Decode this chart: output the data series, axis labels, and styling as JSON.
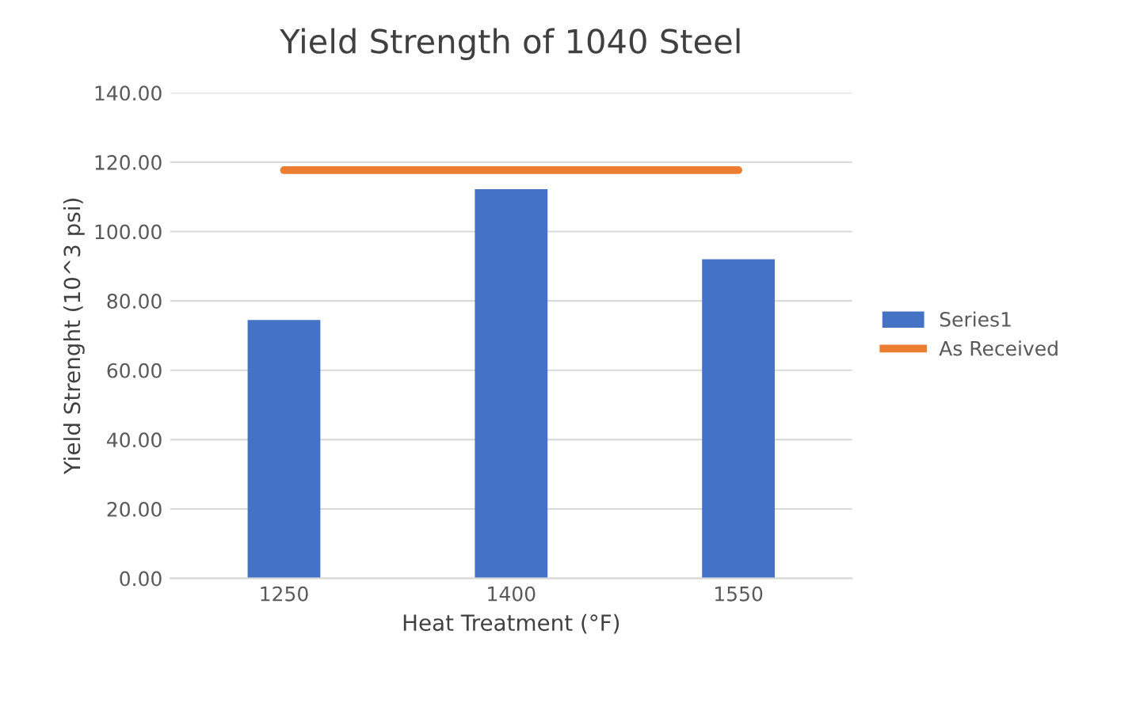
{
  "chart_data": {
    "type": "bar",
    "title": "Yield Strength of 1040 Steel",
    "xlabel": "Heat Treatment (°F)",
    "ylabel": "Yield Strenght (10^3 psi)",
    "categories": [
      "1250",
      "1400",
      "1550"
    ],
    "series": [
      {
        "name": "Series1",
        "color": "#4472c4",
        "values": [
          74.5,
          112.2,
          92.0
        ]
      },
      {
        "name": "As Received",
        "type": "line",
        "color": "#ed7d31",
        "values": [
          117.7,
          117.7,
          117.7
        ]
      }
    ],
    "ylim": [
      0,
      140
    ],
    "yticks": [
      {
        "value": 0,
        "label": "0.00"
      },
      {
        "value": 20,
        "label": "20.00"
      },
      {
        "value": 40,
        "label": "40.00"
      },
      {
        "value": 60,
        "label": "60.00"
      },
      {
        "value": 80,
        "label": "80.00"
      },
      {
        "value": 100,
        "label": "100.00"
      },
      {
        "value": 120,
        "label": "120.00"
      },
      {
        "value": 140,
        "label": "140.00"
      }
    ],
    "grid": "y",
    "legend": "right"
  }
}
